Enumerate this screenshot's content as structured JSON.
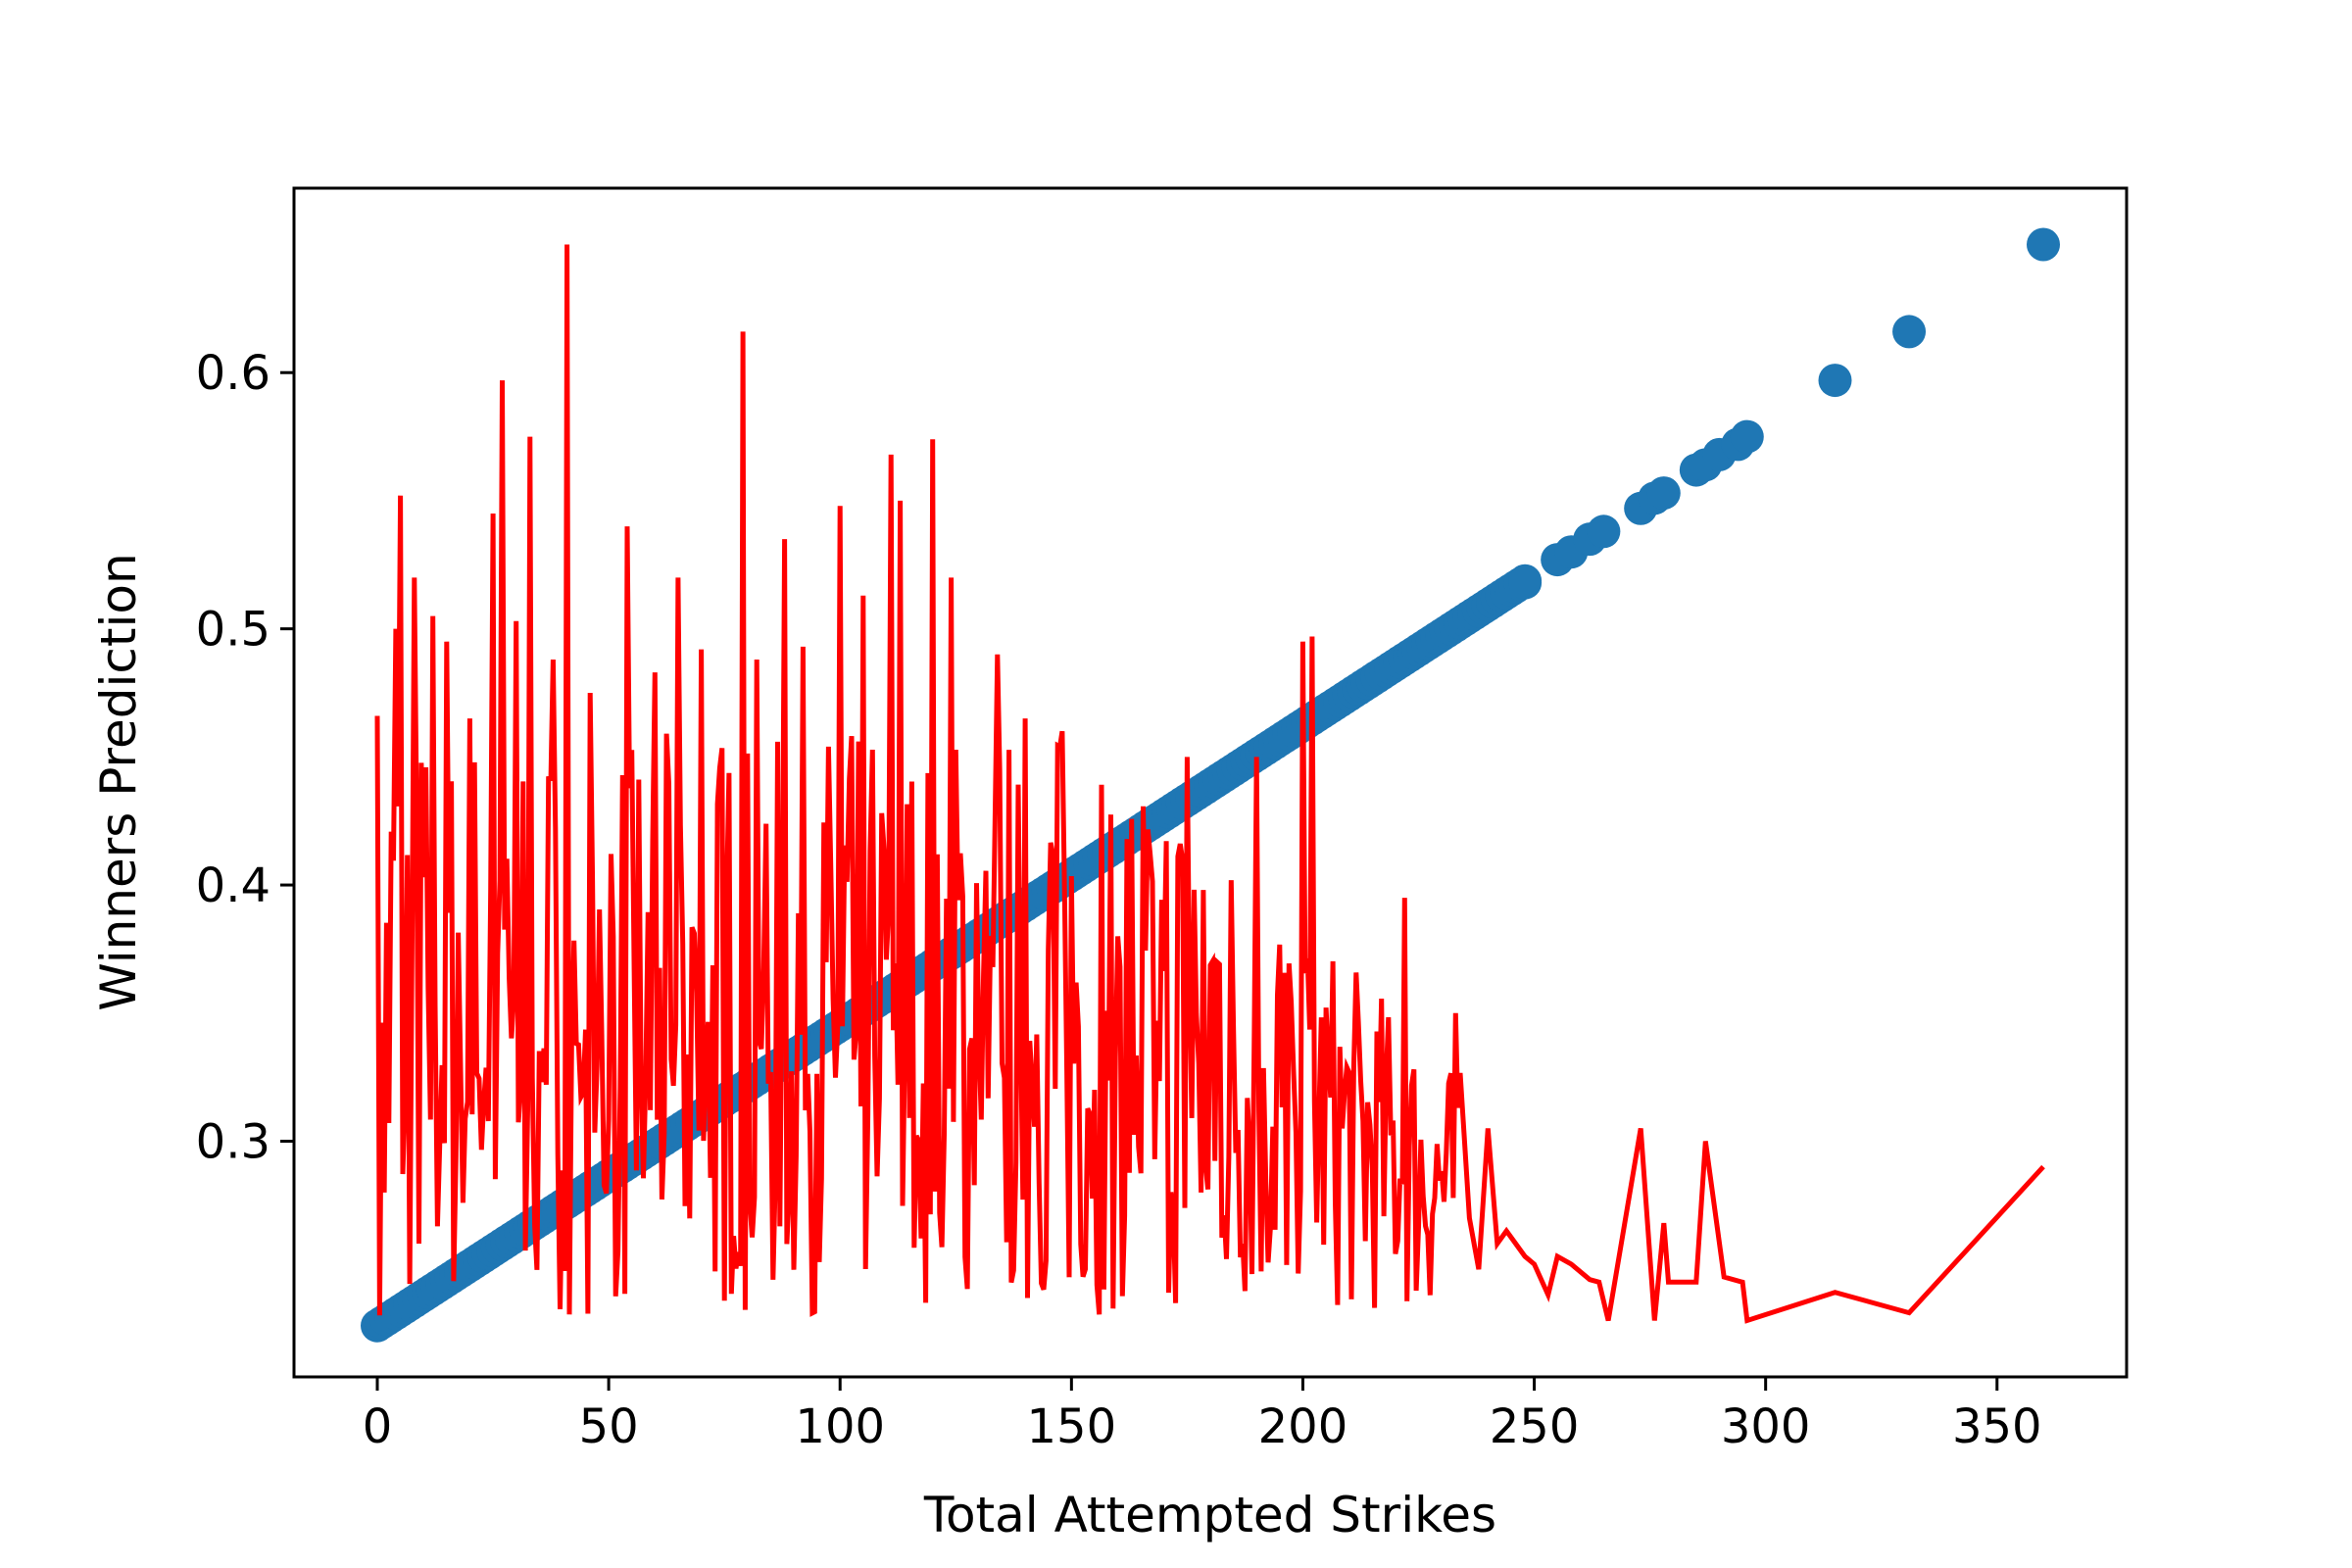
{
  "chart_data": {
    "type": "scatter",
    "xlabel": "Total Attempted Strikes",
    "ylabel": "Winners Prediction",
    "xlim": [
      -18,
      378
    ],
    "ylim": [
      0.208,
      0.672
    ],
    "grid": false,
    "xticks": [
      0,
      50,
      100,
      150,
      200,
      250,
      300,
      350
    ],
    "yticks": [
      0.3,
      0.4,
      0.5,
      0.6
    ],
    "xtick_labels": [
      "0",
      "50",
      "100",
      "150",
      "200",
      "250",
      "300",
      "350"
    ],
    "ytick_labels": [
      "0.3",
      "0.4",
      "0.5",
      "0.6"
    ],
    "series": [
      {
        "type": "scatter",
        "color": "#1f77b4",
        "trend": {
          "x_start": 0,
          "y_start": 0.228,
          "x_end": 360,
          "y_end": 0.65
        },
        "x": [
          248,
          255,
          258,
          262,
          265,
          273,
          276,
          278,
          285,
          287,
          290,
          294,
          296,
          315,
          331,
          360
        ],
        "y": [
          0.518,
          0.527,
          0.53,
          0.535,
          0.538,
          0.547,
          0.551,
          0.553,
          0.562,
          0.564,
          0.568,
          0.572,
          0.575,
          0.597,
          0.616,
          0.65
        ]
      },
      {
        "type": "line",
        "color": "#ff0000",
        "dense_region": {
          "x_start": 0,
          "x_end": 265
        },
        "spikes": [
          [
            0,
            0.466
          ],
          [
            4,
            0.5
          ],
          [
            5,
            0.552
          ],
          [
            8,
            0.52
          ],
          [
            12,
            0.505
          ],
          [
            15,
            0.495
          ],
          [
            20,
            0.465
          ],
          [
            25,
            0.545
          ],
          [
            27,
            0.597
          ],
          [
            30,
            0.503
          ],
          [
            33,
            0.575
          ],
          [
            38,
            0.488
          ],
          [
            41,
            0.65
          ],
          [
            46,
            0.475
          ],
          [
            54,
            0.54
          ],
          [
            60,
            0.483
          ],
          [
            65,
            0.52
          ],
          [
            70,
            0.492
          ],
          [
            79,
            0.616
          ],
          [
            82,
            0.488
          ],
          [
            88,
            0.535
          ],
          [
            92,
            0.493
          ],
          [
            100,
            0.548
          ],
          [
            105,
            0.513
          ],
          [
            111,
            0.568
          ],
          [
            113,
            0.55
          ],
          [
            120,
            0.574
          ],
          [
            124,
            0.52
          ],
          [
            134,
            0.49
          ],
          [
            140,
            0.465
          ],
          [
            148,
            0.46
          ],
          [
            160,
            0.38
          ],
          [
            175,
            0.45
          ],
          [
            190,
            0.45
          ],
          [
            200,
            0.495
          ],
          [
            202,
            0.497
          ],
          [
            222,
            0.395
          ],
          [
            233,
            0.35
          ]
        ],
        "tail": [
          [
            236,
            0.27
          ],
          [
            238,
            0.25
          ],
          [
            240,
            0.305
          ],
          [
            242,
            0.26
          ],
          [
            244,
            0.265
          ],
          [
            246,
            0.26
          ],
          [
            248,
            0.255
          ],
          [
            250,
            0.252
          ],
          [
            253,
            0.24
          ],
          [
            255,
            0.255
          ],
          [
            258,
            0.252
          ],
          [
            262,
            0.246
          ],
          [
            264,
            0.245
          ],
          [
            266,
            0.23
          ],
          [
            273,
            0.305
          ],
          [
            276,
            0.23
          ],
          [
            278,
            0.268
          ],
          [
            279,
            0.245
          ],
          [
            285,
            0.245
          ],
          [
            287,
            0.3
          ],
          [
            291,
            0.247
          ],
          [
            295,
            0.245
          ],
          [
            296,
            0.23
          ],
          [
            315,
            0.241
          ],
          [
            331,
            0.233
          ],
          [
            360,
            0.29
          ]
        ]
      }
    ]
  }
}
